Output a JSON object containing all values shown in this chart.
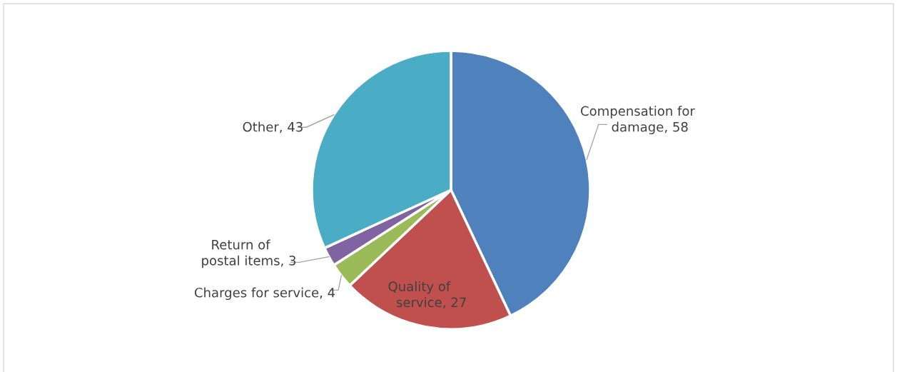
{
  "chart_data": {
    "type": "pie",
    "categories": [
      "Compensation for\ndamage",
      "Quality of\nservice",
      "Charges for service",
      "Return of\npostal items",
      "Other"
    ],
    "values": [
      58,
      27,
      4,
      3,
      43
    ],
    "colors": [
      "#4f81bd",
      "#c0504d",
      "#9bbb59",
      "#8064a2",
      "#4bacc6"
    ],
    "value_labels": [
      ", 58",
      ", 27",
      ", 4",
      ", 3",
      ", 43"
    ],
    "legend": false
  }
}
